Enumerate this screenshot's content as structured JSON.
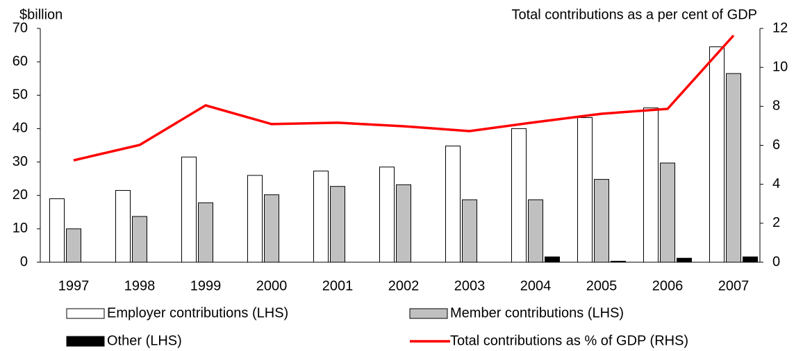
{
  "chart_data": {
    "type": "bar",
    "y_label": "$billion",
    "y2_label": "Total contributions as a per cent of GDP",
    "categories": [
      "1997",
      "1998",
      "1999",
      "2000",
      "2001",
      "2002",
      "2003",
      "2004",
      "2005",
      "2006",
      "2007"
    ],
    "series": [
      {
        "name": "Employer contributions (LHS)",
        "type": "bar",
        "color": "#ffffff",
        "values": [
          19,
          21.5,
          31.5,
          26,
          27.3,
          28.5,
          34.8,
          40,
          43.3,
          46.2,
          64.5
        ]
      },
      {
        "name": "Member contributions (LHS)",
        "type": "bar",
        "color": "#c0c0c0",
        "values": [
          10,
          13.7,
          17.8,
          20.2,
          22.7,
          23.2,
          18.7,
          18.7,
          24.8,
          29.7,
          56.5
        ]
      },
      {
        "name": "Other (LHS)",
        "type": "bar",
        "color": "#000000",
        "values": [
          0,
          0,
          0,
          0,
          0,
          0,
          0,
          1.6,
          0.3,
          1.2,
          1.6
        ]
      },
      {
        "name": "Total contributions as % of GDP (RHS)",
        "type": "line",
        "axis": "y2",
        "color": "#ff0000",
        "values": [
          5.23,
          6.02,
          8.05,
          7.09,
          7.16,
          6.98,
          6.73,
          7.19,
          7.62,
          7.87,
          11.64
        ]
      }
    ],
    "ylim": [
      0,
      70
    ],
    "yticks": [
      0,
      10,
      20,
      30,
      40,
      50,
      60,
      70
    ],
    "y2lim": [
      0,
      12
    ],
    "y2ticks": [
      0,
      2,
      4,
      6,
      8,
      10,
      12
    ],
    "grid": false,
    "legend": "bottom"
  }
}
